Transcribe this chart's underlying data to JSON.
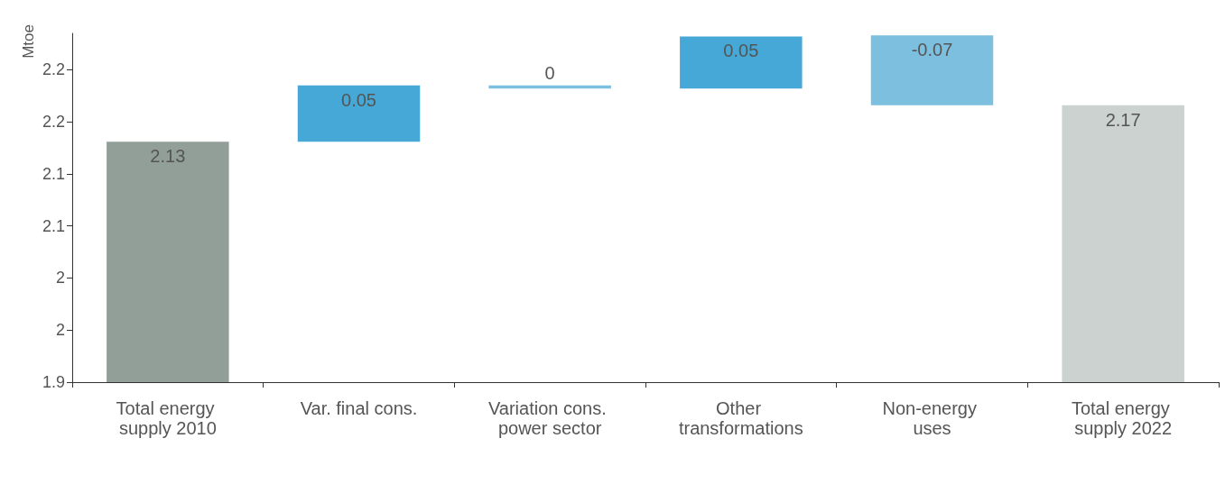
{
  "chart_data": {
    "type": "bar",
    "ylabel": "Mtoe",
    "categories": [
      "Total energy supply 2010",
      "Var. final cons.",
      "Variation cons. power sector",
      "Other transformations",
      "Non-energy uses",
      "Total energy supply 2022"
    ],
    "values": [
      2.131,
      0.054,
      -0.003,
      0.05,
      -0.067,
      2.166
    ],
    "base": [
      0,
      2.131,
      2.185,
      2.182,
      2.233,
      0
    ],
    "colors": [
      "#919f98",
      "#45a8d6",
      "#7dbfdf",
      "#45a8d6",
      "#7dbfdf",
      "#cbd2cf"
    ],
    "value_labels": [
      "2.13",
      "0.05",
      "0",
      "0.05",
      "-0.07",
      "2.17"
    ],
    "ylim": [
      1.9,
      2.235
    ],
    "yticks": [
      {
        "value": 1.9,
        "label": "1.9"
      },
      {
        "value": 1.95,
        "label": "2"
      },
      {
        "value": 2.0,
        "label": "2"
      },
      {
        "value": 2.05,
        "label": "2.1"
      },
      {
        "value": 2.1,
        "label": "2.1"
      },
      {
        "value": 2.15,
        "label": "2.2"
      },
      {
        "value": 2.2,
        "label": "2.2"
      }
    ],
    "grid": false
  }
}
